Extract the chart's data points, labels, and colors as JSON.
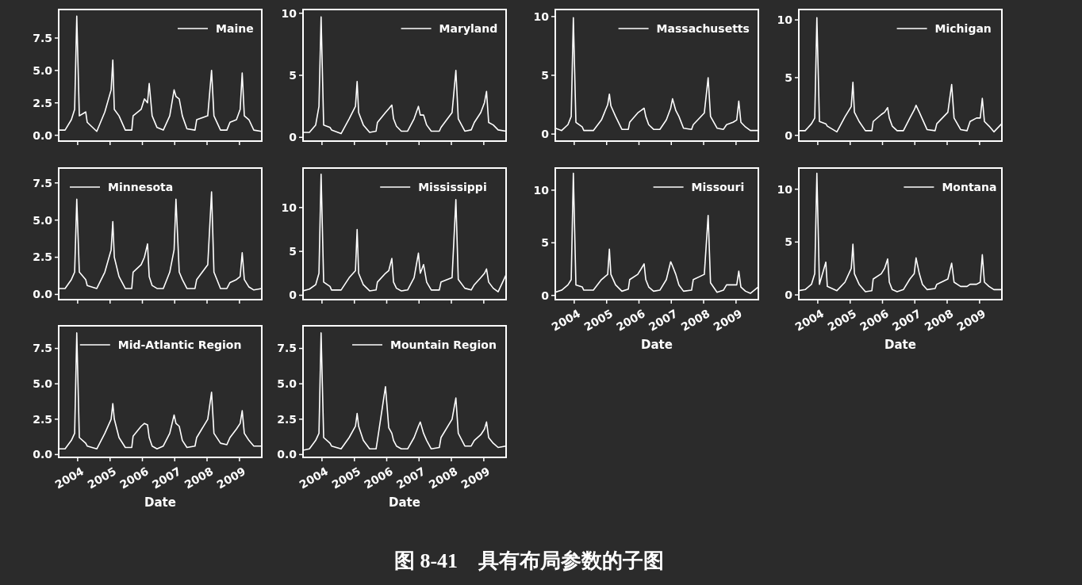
{
  "chart_data": [
    {
      "type": "line",
      "x": [
        "2003-06-01",
        "2003-08-12",
        "2003-10-22",
        "2003-11-28",
        "2003-12-22",
        "2004-01-20",
        "2004-04-01",
        "2004-04-18",
        "2004-08-04",
        "2004-11-03",
        "2005-01-13",
        "2005-02-01",
        "2005-02-18",
        "2005-04-12",
        "2005-06-22",
        "2005-09-03",
        "2005-09-18",
        "2005-12-18",
        "2006-01-24",
        "2006-02-28",
        "2006-03-19",
        "2006-04-21",
        "2006-06-15",
        "2006-08-25",
        "2006-11-06",
        "2006-12-25",
        "2007-01-15",
        "2007-02-21",
        "2007-03-28",
        "2007-05-19",
        "2007-08-18",
        "2007-09-06",
        "2008-01-09",
        "2008-02-21",
        "2008-03-19",
        "2008-06-01",
        "2008-08-12",
        "2008-09-16",
        "2008-11-28",
        "2009-01-09",
        "2009-02-01",
        "2009-02-25",
        "2009-04-18",
        "2009-06-12",
        "2009-09-08"
      ],
      "series": [
        {
          "name": "Maine",
          "color": "#ffffff",
          "values": [
            0.4,
            0.4,
            1.2,
            2.0,
            9.2,
            1.5,
            1.8,
            1.0,
            0.3,
            1.8,
            3.5,
            5.8,
            2.0,
            1.5,
            0.4,
            0.4,
            1.5,
            2.0,
            2.8,
            2.5,
            4.0,
            1.5,
            0.6,
            0.4,
            1.5,
            3.5,
            3.0,
            2.8,
            1.5,
            0.5,
            0.4,
            1.2,
            1.5,
            5.0,
            1.5,
            0.4,
            0.4,
            1.0,
            1.2,
            2.0,
            4.8,
            1.5,
            1.2,
            0.4,
            0.3
          ]
        }
      ],
      "xlim": [
        "2003-06-01",
        "2009-09-10"
      ],
      "xticks": [
        {
          "value": "2004-01-01",
          "label": null
        },
        {
          "value": "2005-01-01",
          "label": null
        },
        {
          "value": "2006-01-01",
          "label": null
        },
        {
          "value": "2007-01-01",
          "label": null
        },
        {
          "value": "2008-01-01",
          "label": null
        },
        {
          "value": "2009-01-01",
          "label": null
        }
      ],
      "ylim": [
        -0.45,
        9.7
      ],
      "yticks": [
        {
          "value": 0,
          "label": "0.0"
        },
        {
          "value": 2.5,
          "label": "2.5"
        },
        {
          "value": 5,
          "label": "5.0"
        },
        {
          "value": 7.5,
          "label": "7.5"
        }
      ],
      "legend": "top right",
      "tick_labels": "y",
      "annotations": [
        "图 8-41　具有布局参数的子图"
      ]
    },
    {
      "type": "line",
      "x": [
        "2003-06-01",
        "2003-08-12",
        "2003-10-22",
        "2003-11-28",
        "2003-12-22",
        "2004-01-20",
        "2004-04-01",
        "2004-04-18",
        "2004-08-04",
        "2004-11-03",
        "2005-01-13",
        "2005-02-01",
        "2005-02-18",
        "2005-04-12",
        "2005-06-22",
        "2005-09-03",
        "2005-09-18",
        "2005-12-18",
        "2006-01-24",
        "2006-02-28",
        "2006-03-19",
        "2006-04-21",
        "2006-06-15",
        "2006-08-25",
        "2006-11-06",
        "2006-12-25",
        "2007-01-15",
        "2007-02-21",
        "2007-03-28",
        "2007-05-19",
        "2007-08-18",
        "2007-09-06",
        "2008-01-09",
        "2008-02-21",
        "2008-03-19",
        "2008-06-01",
        "2008-08-12",
        "2008-09-16",
        "2008-11-28",
        "2009-01-09",
        "2009-02-01",
        "2009-02-25",
        "2009-04-18",
        "2009-06-12",
        "2009-09-08"
      ],
      "series": [
        {
          "name": "Maryland",
          "color": "#ffffff",
          "values": [
            0.4,
            0.4,
            1.0,
            2.5,
            9.7,
            1.0,
            0.8,
            0.6,
            0.3,
            1.5,
            2.5,
            4.5,
            2.0,
            1.0,
            0.4,
            0.5,
            1.2,
            2.0,
            2.3,
            2.6,
            1.5,
            0.9,
            0.5,
            0.5,
            1.5,
            2.5,
            1.8,
            1.8,
            1.0,
            0.5,
            0.5,
            0.8,
            2.0,
            5.4,
            1.5,
            0.5,
            0.6,
            1.2,
            2.0,
            2.8,
            3.7,
            1.2,
            1.0,
            0.6,
            0.5
          ]
        }
      ],
      "xlim": [
        "2003-06-01",
        "2009-09-10"
      ],
      "xticks": [
        {
          "value": "2004-01-01",
          "label": null
        },
        {
          "value": "2005-01-01",
          "label": null
        },
        {
          "value": "2006-01-01",
          "label": null
        },
        {
          "value": "2007-01-01",
          "label": null
        },
        {
          "value": "2008-01-01",
          "label": null
        },
        {
          "value": "2009-01-01",
          "label": null
        }
      ],
      "ylim": [
        -0.3,
        10.3
      ],
      "yticks": [
        0,
        5,
        10
      ],
      "legend": "top right",
      "tick_labels": "y"
    },
    {
      "type": "line",
      "x": [
        "2003-06-01",
        "2003-08-12",
        "2003-10-22",
        "2003-11-28",
        "2003-12-22",
        "2004-01-20",
        "2004-04-01",
        "2004-04-18",
        "2004-08-04",
        "2004-11-03",
        "2005-01-13",
        "2005-02-01",
        "2005-02-18",
        "2005-04-12",
        "2005-06-22",
        "2005-09-03",
        "2005-09-18",
        "2005-12-18",
        "2006-01-24",
        "2006-02-28",
        "2006-03-19",
        "2006-04-21",
        "2006-06-15",
        "2006-08-25",
        "2006-11-06",
        "2006-12-25",
        "2007-01-15",
        "2007-02-21",
        "2007-03-28",
        "2007-05-19",
        "2007-08-18",
        "2007-09-06",
        "2008-01-09",
        "2008-02-21",
        "2008-03-19",
        "2008-06-01",
        "2008-08-12",
        "2008-09-16",
        "2008-11-28",
        "2009-01-09",
        "2009-02-01",
        "2009-02-25",
        "2009-04-18",
        "2009-06-12",
        "2009-09-08"
      ],
      "series": [
        {
          "name": "Massachusetts",
          "color": "#ffffff",
          "values": [
            0.5,
            0.3,
            0.8,
            1.5,
            9.9,
            1.0,
            0.6,
            0.3,
            0.3,
            1.2,
            2.5,
            3.4,
            2.4,
            1.5,
            0.4,
            0.4,
            1.0,
            1.8,
            2.0,
            2.2,
            1.5,
            0.8,
            0.4,
            0.4,
            1.2,
            2.2,
            3.0,
            2.0,
            1.5,
            0.5,
            0.4,
            0.8,
            1.8,
            4.8,
            1.5,
            0.5,
            0.4,
            0.8,
            1.0,
            1.2,
            2.8,
            1.0,
            0.6,
            0.3,
            0.3
          ]
        }
      ],
      "xlim": [
        "2003-06-01",
        "2009-09-10"
      ],
      "xticks": [
        {
          "value": "2004-01-01",
          "label": null
        },
        {
          "value": "2005-01-01",
          "label": null
        },
        {
          "value": "2006-01-01",
          "label": null
        },
        {
          "value": "2007-01-01",
          "label": null
        },
        {
          "value": "2008-01-01",
          "label": null
        },
        {
          "value": "2009-01-01",
          "label": null
        }
      ],
      "ylim": [
        -0.6,
        10.6
      ],
      "yticks": [
        0,
        5,
        10
      ],
      "legend": "top right",
      "tick_labels": "y"
    },
    {
      "type": "line",
      "x": [
        "2003-06-01",
        "2003-08-12",
        "2003-10-22",
        "2003-11-28",
        "2003-12-22",
        "2004-01-20",
        "2004-04-01",
        "2004-04-18",
        "2004-08-04",
        "2004-11-03",
        "2005-01-13",
        "2005-02-01",
        "2005-02-18",
        "2005-04-12",
        "2005-06-22",
        "2005-09-03",
        "2005-09-18",
        "2005-12-18",
        "2006-01-24",
        "2006-02-28",
        "2006-03-19",
        "2006-04-21",
        "2006-06-15",
        "2006-08-25",
        "2006-11-06",
        "2006-12-25",
        "2007-01-15",
        "2007-02-21",
        "2007-03-28",
        "2007-05-19",
        "2007-08-18",
        "2007-09-06",
        "2008-01-09",
        "2008-02-21",
        "2008-03-19",
        "2008-06-01",
        "2008-08-12",
        "2008-09-16",
        "2008-11-28",
        "2009-01-09",
        "2009-02-01",
        "2009-02-25",
        "2009-04-18",
        "2009-06-12",
        "2009-09-08"
      ],
      "series": [
        {
          "name": "Michigan",
          "color": "#ffffff",
          "values": [
            0.4,
            0.4,
            1.0,
            1.5,
            10.2,
            1.2,
            1.0,
            0.8,
            0.3,
            1.6,
            2.5,
            4.6,
            2.0,
            1.2,
            0.4,
            0.4,
            1.2,
            1.8,
            2.0,
            2.4,
            1.5,
            0.8,
            0.4,
            0.4,
            1.5,
            2.2,
            2.6,
            2.0,
            1.4,
            0.5,
            0.4,
            1.0,
            2.0,
            4.4,
            1.5,
            0.5,
            0.4,
            1.2,
            1.5,
            1.5,
            3.2,
            1.2,
            0.8,
            0.3,
            1.0
          ]
        }
      ],
      "xlim": [
        "2003-06-01",
        "2009-09-10"
      ],
      "xticks": [
        {
          "value": "2004-01-01",
          "label": null
        },
        {
          "value": "2005-01-01",
          "label": null
        },
        {
          "value": "2006-01-01",
          "label": null
        },
        {
          "value": "2007-01-01",
          "label": null
        },
        {
          "value": "2008-01-01",
          "label": null
        },
        {
          "value": "2009-01-01",
          "label": null
        }
      ],
      "ylim": [
        -0.5,
        10.9
      ],
      "yticks": [
        0,
        5,
        10
      ],
      "legend": "top right",
      "tick_labels": "y"
    },
    {
      "type": "line",
      "x": [
        "2003-06-01",
        "2003-08-12",
        "2003-10-22",
        "2003-11-28",
        "2003-12-22",
        "2004-01-20",
        "2004-04-01",
        "2004-04-18",
        "2004-08-04",
        "2004-11-03",
        "2005-01-13",
        "2005-02-01",
        "2005-02-18",
        "2005-04-12",
        "2005-06-22",
        "2005-09-03",
        "2005-09-18",
        "2005-12-18",
        "2006-01-24",
        "2006-02-28",
        "2006-03-19",
        "2006-04-21",
        "2006-06-15",
        "2006-08-25",
        "2006-11-06",
        "2006-12-25",
        "2007-01-15",
        "2007-02-21",
        "2007-03-28",
        "2007-05-19",
        "2007-08-18",
        "2007-09-06",
        "2008-01-09",
        "2008-02-21",
        "2008-03-19",
        "2008-06-01",
        "2008-08-12",
        "2008-09-16",
        "2008-11-28",
        "2009-01-09",
        "2009-02-01",
        "2009-02-25",
        "2009-04-18",
        "2009-06-12",
        "2009-09-08"
      ],
      "series": [
        {
          "name": "Minnesota",
          "color": "#ffffff",
          "values": [
            0.4,
            0.4,
            1.0,
            1.5,
            6.4,
            1.5,
            1.0,
            0.6,
            0.4,
            1.5,
            3.0,
            4.9,
            2.5,
            1.2,
            0.4,
            0.4,
            1.5,
            2.0,
            2.5,
            3.4,
            1.2,
            0.6,
            0.4,
            0.4,
            1.5,
            3.0,
            6.4,
            1.5,
            1.0,
            0.4,
            0.4,
            1.0,
            2.0,
            6.9,
            1.5,
            0.4,
            0.4,
            0.8,
            1.0,
            1.2,
            2.8,
            1.0,
            0.5,
            0.3,
            0.4
          ]
        }
      ],
      "xlim": [
        "2003-06-01",
        "2009-09-10"
      ],
      "xticks": [
        {
          "value": "2004-01-01",
          "label": null
        },
        {
          "value": "2005-01-01",
          "label": null
        },
        {
          "value": "2006-01-01",
          "label": null
        },
        {
          "value": "2007-01-01",
          "label": null
        },
        {
          "value": "2008-01-01",
          "label": null
        },
        {
          "value": "2009-01-01",
          "label": null
        }
      ],
      "ylim": [
        -0.35,
        8.5
      ],
      "yticks": [
        {
          "value": 0,
          "label": "0.0"
        },
        {
          "value": 2.5,
          "label": "2.5"
        },
        {
          "value": 5,
          "label": "5.0"
        },
        {
          "value": 7.5,
          "label": "7.5"
        }
      ],
      "legend": "top left",
      "tick_labels": "y"
    },
    {
      "type": "line",
      "x": [
        "2003-06-01",
        "2003-08-12",
        "2003-10-22",
        "2003-11-28",
        "2003-12-22",
        "2004-01-20",
        "2004-04-01",
        "2004-04-18",
        "2004-08-04",
        "2004-11-03",
        "2005-01-13",
        "2005-02-01",
        "2005-02-18",
        "2005-04-12",
        "2005-06-22",
        "2005-09-03",
        "2005-09-18",
        "2005-12-18",
        "2006-01-24",
        "2006-02-28",
        "2006-03-19",
        "2006-04-21",
        "2006-06-15",
        "2006-08-25",
        "2006-11-06",
        "2006-12-25",
        "2007-01-15",
        "2007-02-21",
        "2007-03-28",
        "2007-05-19",
        "2007-08-18",
        "2007-09-06",
        "2008-01-09",
        "2008-02-21",
        "2008-03-19",
        "2008-06-01",
        "2008-08-12",
        "2008-09-16",
        "2008-11-28",
        "2009-01-09",
        "2009-02-01",
        "2009-02-25",
        "2009-04-18",
        "2009-06-12",
        "2009-09-08"
      ],
      "series": [
        {
          "name": "Mississippi",
          "color": "#ffffff",
          "values": [
            0.5,
            0.7,
            1.2,
            2.5,
            13.8,
            1.5,
            1.0,
            0.6,
            0.6,
            2.0,
            2.8,
            7.5,
            2.5,
            1.2,
            0.5,
            0.6,
            1.5,
            2.5,
            2.8,
            4.2,
            1.5,
            0.8,
            0.5,
            0.6,
            2.0,
            4.8,
            2.5,
            3.5,
            1.5,
            0.6,
            0.6,
            1.5,
            2.0,
            10.9,
            1.8,
            0.8,
            0.6,
            1.2,
            2.0,
            2.5,
            3.0,
            1.5,
            0.8,
            0.4,
            2.3
          ]
        }
      ],
      "xlim": [
        "2003-06-01",
        "2009-09-10"
      ],
      "xticks": [
        {
          "value": "2004-01-01",
          "label": null
        },
        {
          "value": "2005-01-01",
          "label": null
        },
        {
          "value": "2006-01-01",
          "label": null
        },
        {
          "value": "2007-01-01",
          "label": null
        },
        {
          "value": "2008-01-01",
          "label": null
        },
        {
          "value": "2009-01-01",
          "label": null
        }
      ],
      "ylim": [
        -0.5,
        14.5
      ],
      "yticks": [
        0,
        5,
        10
      ],
      "legend": "top right",
      "tick_labels": "y"
    },
    {
      "type": "line",
      "x": [
        "2003-06-01",
        "2003-08-12",
        "2003-10-22",
        "2003-11-28",
        "2003-12-22",
        "2004-01-20",
        "2004-04-01",
        "2004-04-18",
        "2004-08-04",
        "2004-11-03",
        "2005-01-13",
        "2005-02-01",
        "2005-02-18",
        "2005-04-12",
        "2005-06-22",
        "2005-09-03",
        "2005-09-18",
        "2005-12-18",
        "2006-01-24",
        "2006-02-28",
        "2006-03-19",
        "2006-04-21",
        "2006-06-15",
        "2006-08-25",
        "2006-11-06",
        "2006-12-25",
        "2007-01-15",
        "2007-02-21",
        "2007-03-28",
        "2007-05-19",
        "2007-08-18",
        "2007-09-06",
        "2008-01-09",
        "2008-02-21",
        "2008-03-19",
        "2008-06-01",
        "2008-08-12",
        "2008-09-16",
        "2008-11-28",
        "2009-01-09",
        "2009-02-01",
        "2009-02-25",
        "2009-04-18",
        "2009-06-12",
        "2009-09-08"
      ],
      "series": [
        {
          "name": "Missouri",
          "color": "#ffffff",
          "values": [
            0.3,
            0.5,
            1.0,
            1.5,
            11.6,
            1.0,
            0.8,
            0.5,
            0.5,
            1.5,
            2.0,
            4.4,
            2.0,
            1.0,
            0.4,
            0.6,
            1.5,
            2.0,
            2.5,
            3.0,
            1.5,
            0.8,
            0.4,
            0.5,
            1.5,
            3.2,
            2.8,
            2.0,
            1.0,
            0.4,
            0.5,
            1.5,
            2.0,
            7.6,
            1.2,
            0.3,
            0.5,
            1.0,
            1.0,
            1.0,
            2.3,
            0.8,
            0.4,
            0.2,
            0.8
          ]
        }
      ],
      "xlim": [
        "2003-06-01",
        "2009-09-10"
      ],
      "xticks": [
        {
          "value": "2004-01-01",
          "label": "2004"
        },
        {
          "value": "2005-01-01",
          "label": "2005"
        },
        {
          "value": "2006-01-01",
          "label": "2006"
        },
        {
          "value": "2007-01-01",
          "label": "2007"
        },
        {
          "value": "2008-01-01",
          "label": "2008"
        },
        {
          "value": "2009-01-01",
          "label": "2009"
        }
      ],
      "xlabel": "Date",
      "ylim": [
        -0.4,
        12.1
      ],
      "yticks": [
        0,
        5,
        10
      ],
      "legend": "top right"
    },
    {
      "type": "line",
      "x": [
        "2003-06-01",
        "2003-08-12",
        "2003-10-22",
        "2003-11-28",
        "2003-12-22",
        "2004-01-20",
        "2004-04-01",
        "2004-04-18",
        "2004-08-04",
        "2004-11-03",
        "2005-01-13",
        "2005-02-01",
        "2005-02-18",
        "2005-04-12",
        "2005-06-22",
        "2005-09-03",
        "2005-09-18",
        "2005-12-18",
        "2006-01-24",
        "2006-02-28",
        "2006-03-19",
        "2006-04-21",
        "2006-06-15",
        "2006-08-25",
        "2006-11-06",
        "2006-12-25",
        "2007-01-15",
        "2007-02-21",
        "2007-03-28",
        "2007-05-19",
        "2007-08-18",
        "2007-09-06",
        "2008-01-09",
        "2008-02-21",
        "2008-03-19",
        "2008-06-01",
        "2008-08-12",
        "2008-09-16",
        "2008-11-28",
        "2009-01-09",
        "2009-02-01",
        "2009-02-25",
        "2009-04-18",
        "2009-06-12",
        "2009-09-08"
      ],
      "series": [
        {
          "name": "Montana",
          "color": "#ffffff",
          "values": [
            0.4,
            0.5,
            1.0,
            2.0,
            11.5,
            1.0,
            3.1,
            0.8,
            0.4,
            1.2,
            2.5,
            4.8,
            2.0,
            1.0,
            0.3,
            0.4,
            1.5,
            2.0,
            2.5,
            3.4,
            1.2,
            0.5,
            0.3,
            0.5,
            1.5,
            2.0,
            3.5,
            2.0,
            1.0,
            0.5,
            0.6,
            1.0,
            1.5,
            3.0,
            1.2,
            0.8,
            0.8,
            1.0,
            1.0,
            1.2,
            3.8,
            1.2,
            0.8,
            0.5,
            0.5
          ]
        }
      ],
      "xlim": [
        "2003-06-01",
        "2009-09-10"
      ],
      "xticks": [
        {
          "value": "2004-01-01",
          "label": "2004"
        },
        {
          "value": "2005-01-01",
          "label": "2005"
        },
        {
          "value": "2006-01-01",
          "label": "2006"
        },
        {
          "value": "2007-01-01",
          "label": "2007"
        },
        {
          "value": "2008-01-01",
          "label": "2008"
        },
        {
          "value": "2009-01-01",
          "label": "2009"
        }
      ],
      "xlabel": "Date",
      "ylim": [
        -0.45,
        12.0
      ],
      "yticks": [
        0,
        5,
        10
      ],
      "legend": "top right"
    },
    {
      "type": "line",
      "x": [
        "2003-06-01",
        "2003-08-12",
        "2003-10-22",
        "2003-11-28",
        "2003-12-22",
        "2004-01-20",
        "2004-04-01",
        "2004-04-18",
        "2004-08-04",
        "2004-11-03",
        "2005-01-13",
        "2005-02-01",
        "2005-02-18",
        "2005-04-12",
        "2005-06-22",
        "2005-09-03",
        "2005-09-18",
        "2005-12-18",
        "2006-01-24",
        "2006-02-28",
        "2006-03-19",
        "2006-04-21",
        "2006-06-15",
        "2006-08-25",
        "2006-11-06",
        "2006-12-25",
        "2007-01-15",
        "2007-02-21",
        "2007-03-28",
        "2007-05-19",
        "2007-08-18",
        "2007-09-06",
        "2008-01-09",
        "2008-02-21",
        "2008-03-19",
        "2008-06-01",
        "2008-08-12",
        "2008-09-16",
        "2008-11-28",
        "2009-01-09",
        "2009-02-01",
        "2009-02-25",
        "2009-04-18",
        "2009-06-12",
        "2009-09-08"
      ],
      "series": [
        {
          "name": "Mid-Atlantic Region",
          "color": "#ffffff",
          "values": [
            0.4,
            0.4,
            1.0,
            1.5,
            8.6,
            1.2,
            0.8,
            0.6,
            0.4,
            1.5,
            2.5,
            3.6,
            2.5,
            1.2,
            0.5,
            0.5,
            1.3,
            2.0,
            2.2,
            2.1,
            1.2,
            0.6,
            0.4,
            0.6,
            1.5,
            2.8,
            2.2,
            2.0,
            1.0,
            0.5,
            0.6,
            1.2,
            2.5,
            4.4,
            1.5,
            0.8,
            0.7,
            1.2,
            1.8,
            2.2,
            3.1,
            1.5,
            1.0,
            0.6,
            0.6
          ]
        }
      ],
      "xlim": [
        "2003-06-01",
        "2009-09-10"
      ],
      "xticks": [
        {
          "value": "2004-01-01",
          "label": "2004"
        },
        {
          "value": "2005-01-01",
          "label": "2005"
        },
        {
          "value": "2006-01-01",
          "label": "2006"
        },
        {
          "value": "2007-01-01",
          "label": "2007"
        },
        {
          "value": "2008-01-01",
          "label": "2008"
        },
        {
          "value": "2009-01-01",
          "label": "2009"
        }
      ],
      "xlabel": "Date",
      "ylim": [
        -0.2,
        9.1
      ],
      "yticks": [
        {
          "value": 0,
          "label": "0.0"
        },
        {
          "value": 2.5,
          "label": "2.5"
        },
        {
          "value": 5,
          "label": "5.0"
        },
        {
          "value": 7.5,
          "label": "7.5"
        }
      ],
      "legend": "top right"
    },
    {
      "type": "line",
      "x": [
        "2003-06-01",
        "2003-08-12",
        "2003-10-22",
        "2003-11-28",
        "2003-12-22",
        "2004-01-20",
        "2004-04-01",
        "2004-04-18",
        "2004-08-04",
        "2004-11-03",
        "2005-01-13",
        "2005-02-01",
        "2005-02-18",
        "2005-04-12",
        "2005-06-22",
        "2005-09-03",
        "2005-09-18",
        "2005-12-18",
        "2006-01-24",
        "2006-02-28",
        "2006-03-19",
        "2006-04-21",
        "2006-06-15",
        "2006-08-25",
        "2006-11-06",
        "2006-12-25",
        "2007-01-15",
        "2007-02-21",
        "2007-03-28",
        "2007-05-19",
        "2007-08-18",
        "2007-09-06",
        "2008-01-09",
        "2008-02-21",
        "2008-03-19",
        "2008-06-01",
        "2008-08-12",
        "2008-09-16",
        "2008-11-28",
        "2009-01-09",
        "2009-02-01",
        "2009-02-25",
        "2009-04-18",
        "2009-06-12",
        "2009-09-08"
      ],
      "series": [
        {
          "name": "Mountain Region",
          "color": "#ffffff",
          "values": [
            0.3,
            0.4,
            1.0,
            1.5,
            8.6,
            1.2,
            0.8,
            0.6,
            0.4,
            1.2,
            2.0,
            2.9,
            2.0,
            1.0,
            0.4,
            0.4,
            1.0,
            4.8,
            1.9,
            1.5,
            1.0,
            0.6,
            0.4,
            0.4,
            1.2,
            2.0,
            2.3,
            1.5,
            1.0,
            0.4,
            0.5,
            1.2,
            2.5,
            4.0,
            1.5,
            0.6,
            0.6,
            1.0,
            1.4,
            1.8,
            2.3,
            1.2,
            0.8,
            0.5,
            0.6
          ]
        }
      ],
      "xlim": [
        "2003-06-01",
        "2009-09-10"
      ],
      "xticks": [
        {
          "value": "2004-01-01",
          "label": "2004"
        },
        {
          "value": "2005-01-01",
          "label": "2005"
        },
        {
          "value": "2006-01-01",
          "label": "2006"
        },
        {
          "value": "2007-01-01",
          "label": "2007"
        },
        {
          "value": "2008-01-01",
          "label": "2008"
        },
        {
          "value": "2009-01-01",
          "label": "2009"
        }
      ],
      "xlabel": "Date",
      "ylim": [
        -0.2,
        9.1
      ],
      "yticks": [
        {
          "value": 0,
          "label": "0.0"
        },
        {
          "value": 2.5,
          "label": "2.5"
        },
        {
          "value": 5,
          "label": "5.0"
        },
        {
          "value": 7.5,
          "label": "7.5"
        }
      ],
      "legend": "top right"
    }
  ]
}
